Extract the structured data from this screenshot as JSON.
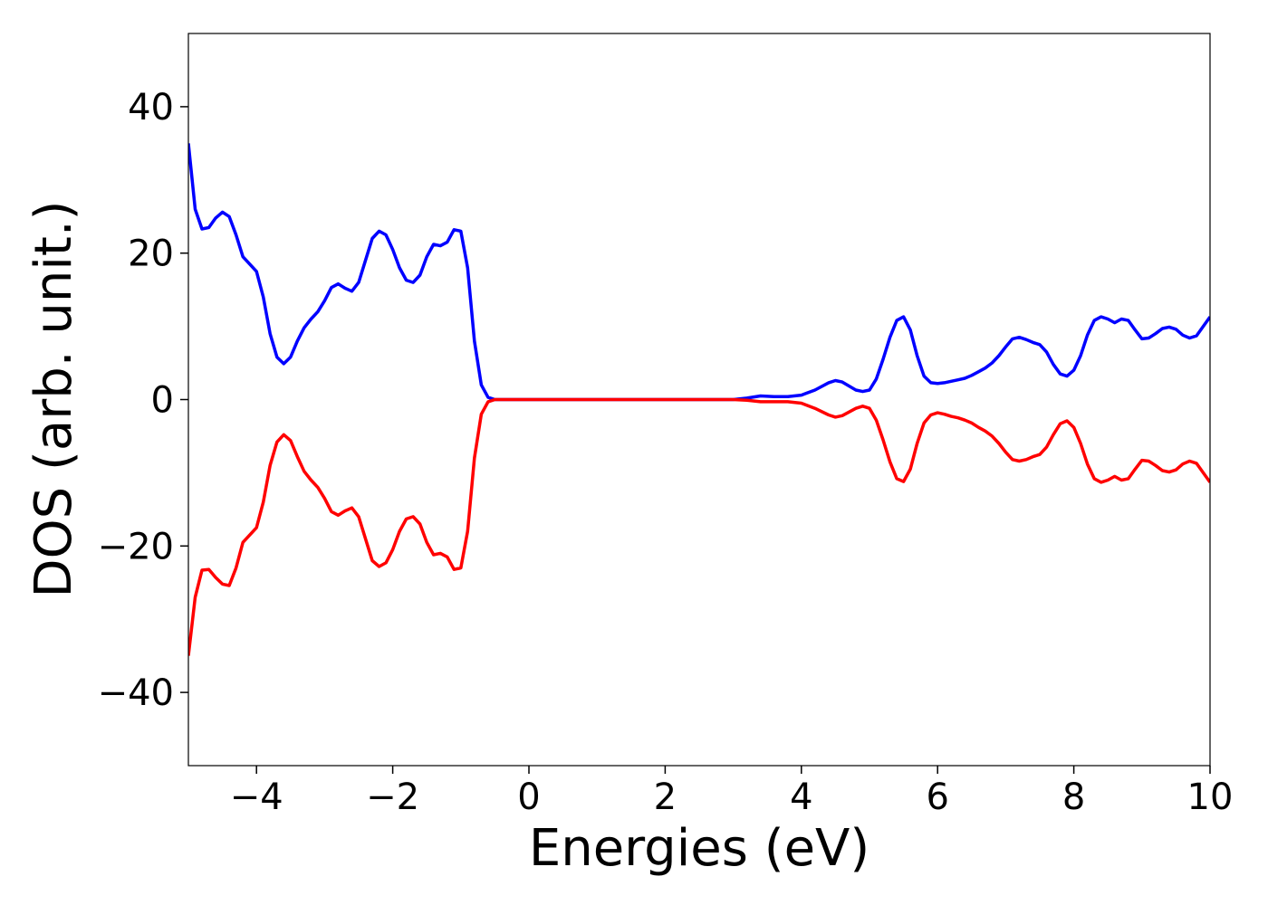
{
  "chart_data": {
    "type": "line",
    "xlabel": "Energies (eV)",
    "ylabel": "DOS (arb. unit.)",
    "x": [
      -5,
      -4.9,
      -4.8,
      -4.7,
      -4.6,
      -4.5,
      -4.4,
      -4.3,
      -4.2,
      -4.1,
      -4,
      -3.9,
      -3.8,
      -3.7,
      -3.6,
      -3.5,
      -3.4,
      -3.3,
      -3.2,
      -3.1,
      -3,
      -2.9,
      -2.8,
      -2.7,
      -2.6,
      -2.5,
      -2.4,
      -2.3,
      -2.2,
      -2.1,
      -2,
      -1.9,
      -1.8,
      -1.7,
      -1.6,
      -1.5,
      -1.4,
      -1.3,
      -1.2,
      -1.1,
      -1,
      -0.9,
      -0.8,
      -0.7,
      -0.6,
      -0.5,
      0,
      1,
      2,
      3,
      3.2,
      3.4,
      3.6,
      3.8,
      4,
      4.2,
      4.4,
      4.5,
      4.6,
      4.8,
      4.9,
      5,
      5.1,
      5.2,
      5.3,
      5.4,
      5.5,
      5.6,
      5.7,
      5.8,
      5.9,
      6,
      6.1,
      6.2,
      6.3,
      6.4,
      6.5,
      6.6,
      6.7,
      6.8,
      6.9,
      7,
      7.1,
      7.2,
      7.3,
      7.4,
      7.5,
      7.6,
      7.7,
      7.8,
      7.9,
      8,
      8.1,
      8.2,
      8.3,
      8.4,
      8.5,
      8.6,
      8.7,
      8.8,
      8.9,
      9,
      9.1,
      9.2,
      9.3,
      9.4,
      9.5,
      9.6,
      9.7,
      9.8,
      9.9,
      10
    ],
    "series": [
      {
        "color": "#0000ff",
        "values": [
          35,
          26,
          23.3,
          23.5,
          24.8,
          25.6,
          25,
          22.5,
          19.5,
          18.5,
          17.5,
          14,
          9,
          5.8,
          4.9,
          5.8,
          8,
          9.8,
          11,
          12,
          13.5,
          15.3,
          15.8,
          15.2,
          14.8,
          16,
          19,
          22,
          23,
          22.5,
          20.5,
          18,
          16.3,
          16,
          17,
          19.5,
          21.2,
          21,
          21.5,
          23.2,
          23,
          18,
          8,
          2,
          0.3,
          0,
          0,
          0,
          0,
          0,
          0.2,
          0.5,
          0.4,
          0.4,
          0.6,
          1.3,
          2.3,
          2.6,
          2.4,
          1.3,
          1.1,
          1.3,
          2.8,
          5.5,
          8.5,
          10.8,
          11.3,
          9.5,
          6,
          3.2,
          2.3,
          2.2,
          2.3,
          2.5,
          2.7,
          2.9,
          3.3,
          3.8,
          4.3,
          5,
          6,
          7.2,
          8.3,
          8.5,
          8.2,
          7.8,
          7.5,
          6.5,
          4.8,
          3.5,
          3.2,
          4,
          6,
          8.8,
          10.8,
          11.3,
          11,
          10.5,
          11,
          10.8,
          9.5,
          8.3,
          8.4,
          9,
          9.7,
          9.9,
          9.6,
          8.8,
          8.4,
          8.7,
          10,
          11.3
        ]
      },
      {
        "color": "#ff0000",
        "values": [
          -35,
          -27,
          -23.3,
          -23.2,
          -24.3,
          -25.2,
          -25.4,
          -23,
          -19.5,
          -18.5,
          -17.5,
          -14,
          -9,
          -5.8,
          -4.8,
          -5.6,
          -7.8,
          -9.8,
          -11,
          -12,
          -13.5,
          -15.3,
          -15.8,
          -15.2,
          -14.8,
          -16,
          -19,
          -22,
          -22.8,
          -22.3,
          -20.5,
          -18,
          -16.3,
          -16,
          -17,
          -19.5,
          -21.2,
          -21,
          -21.5,
          -23.2,
          -23,
          -18,
          -8,
          -2,
          -0.3,
          0,
          0,
          0,
          0,
          0,
          -0.1,
          -0.3,
          -0.3,
          -0.3,
          -0.5,
          -1.2,
          -2.1,
          -2.4,
          -2.2,
          -1.2,
          -0.9,
          -1.2,
          -2.8,
          -5.5,
          -8.5,
          -10.8,
          -11.2,
          -9.5,
          -6,
          -3.2,
          -2.1,
          -1.8,
          -2,
          -2.3,
          -2.5,
          -2.8,
          -3.2,
          -3.8,
          -4.3,
          -5,
          -6,
          -7.2,
          -8.2,
          -8.4,
          -8.2,
          -7.8,
          -7.5,
          -6.5,
          -4.8,
          -3.3,
          -2.9,
          -3.8,
          -6,
          -8.8,
          -10.8,
          -11.3,
          -11,
          -10.5,
          -11,
          -10.8,
          -9.5,
          -8.3,
          -8.4,
          -9,
          -9.7,
          -9.9,
          -9.6,
          -8.8,
          -8.4,
          -8.7,
          -10,
          -11.3
        ]
      }
    ],
    "xlim": [
      -5,
      10
    ],
    "xticks": [
      {
        "value": -4,
        "label": "−4"
      },
      {
        "value": -2,
        "label": "−2"
      },
      0,
      2,
      4,
      6,
      8,
      10
    ],
    "ylim": [
      -50,
      50
    ],
    "yticks": [
      {
        "value": -40,
        "label": "−40"
      },
      {
        "value": -20,
        "label": "−20"
      },
      0,
      20,
      40
    ]
  }
}
